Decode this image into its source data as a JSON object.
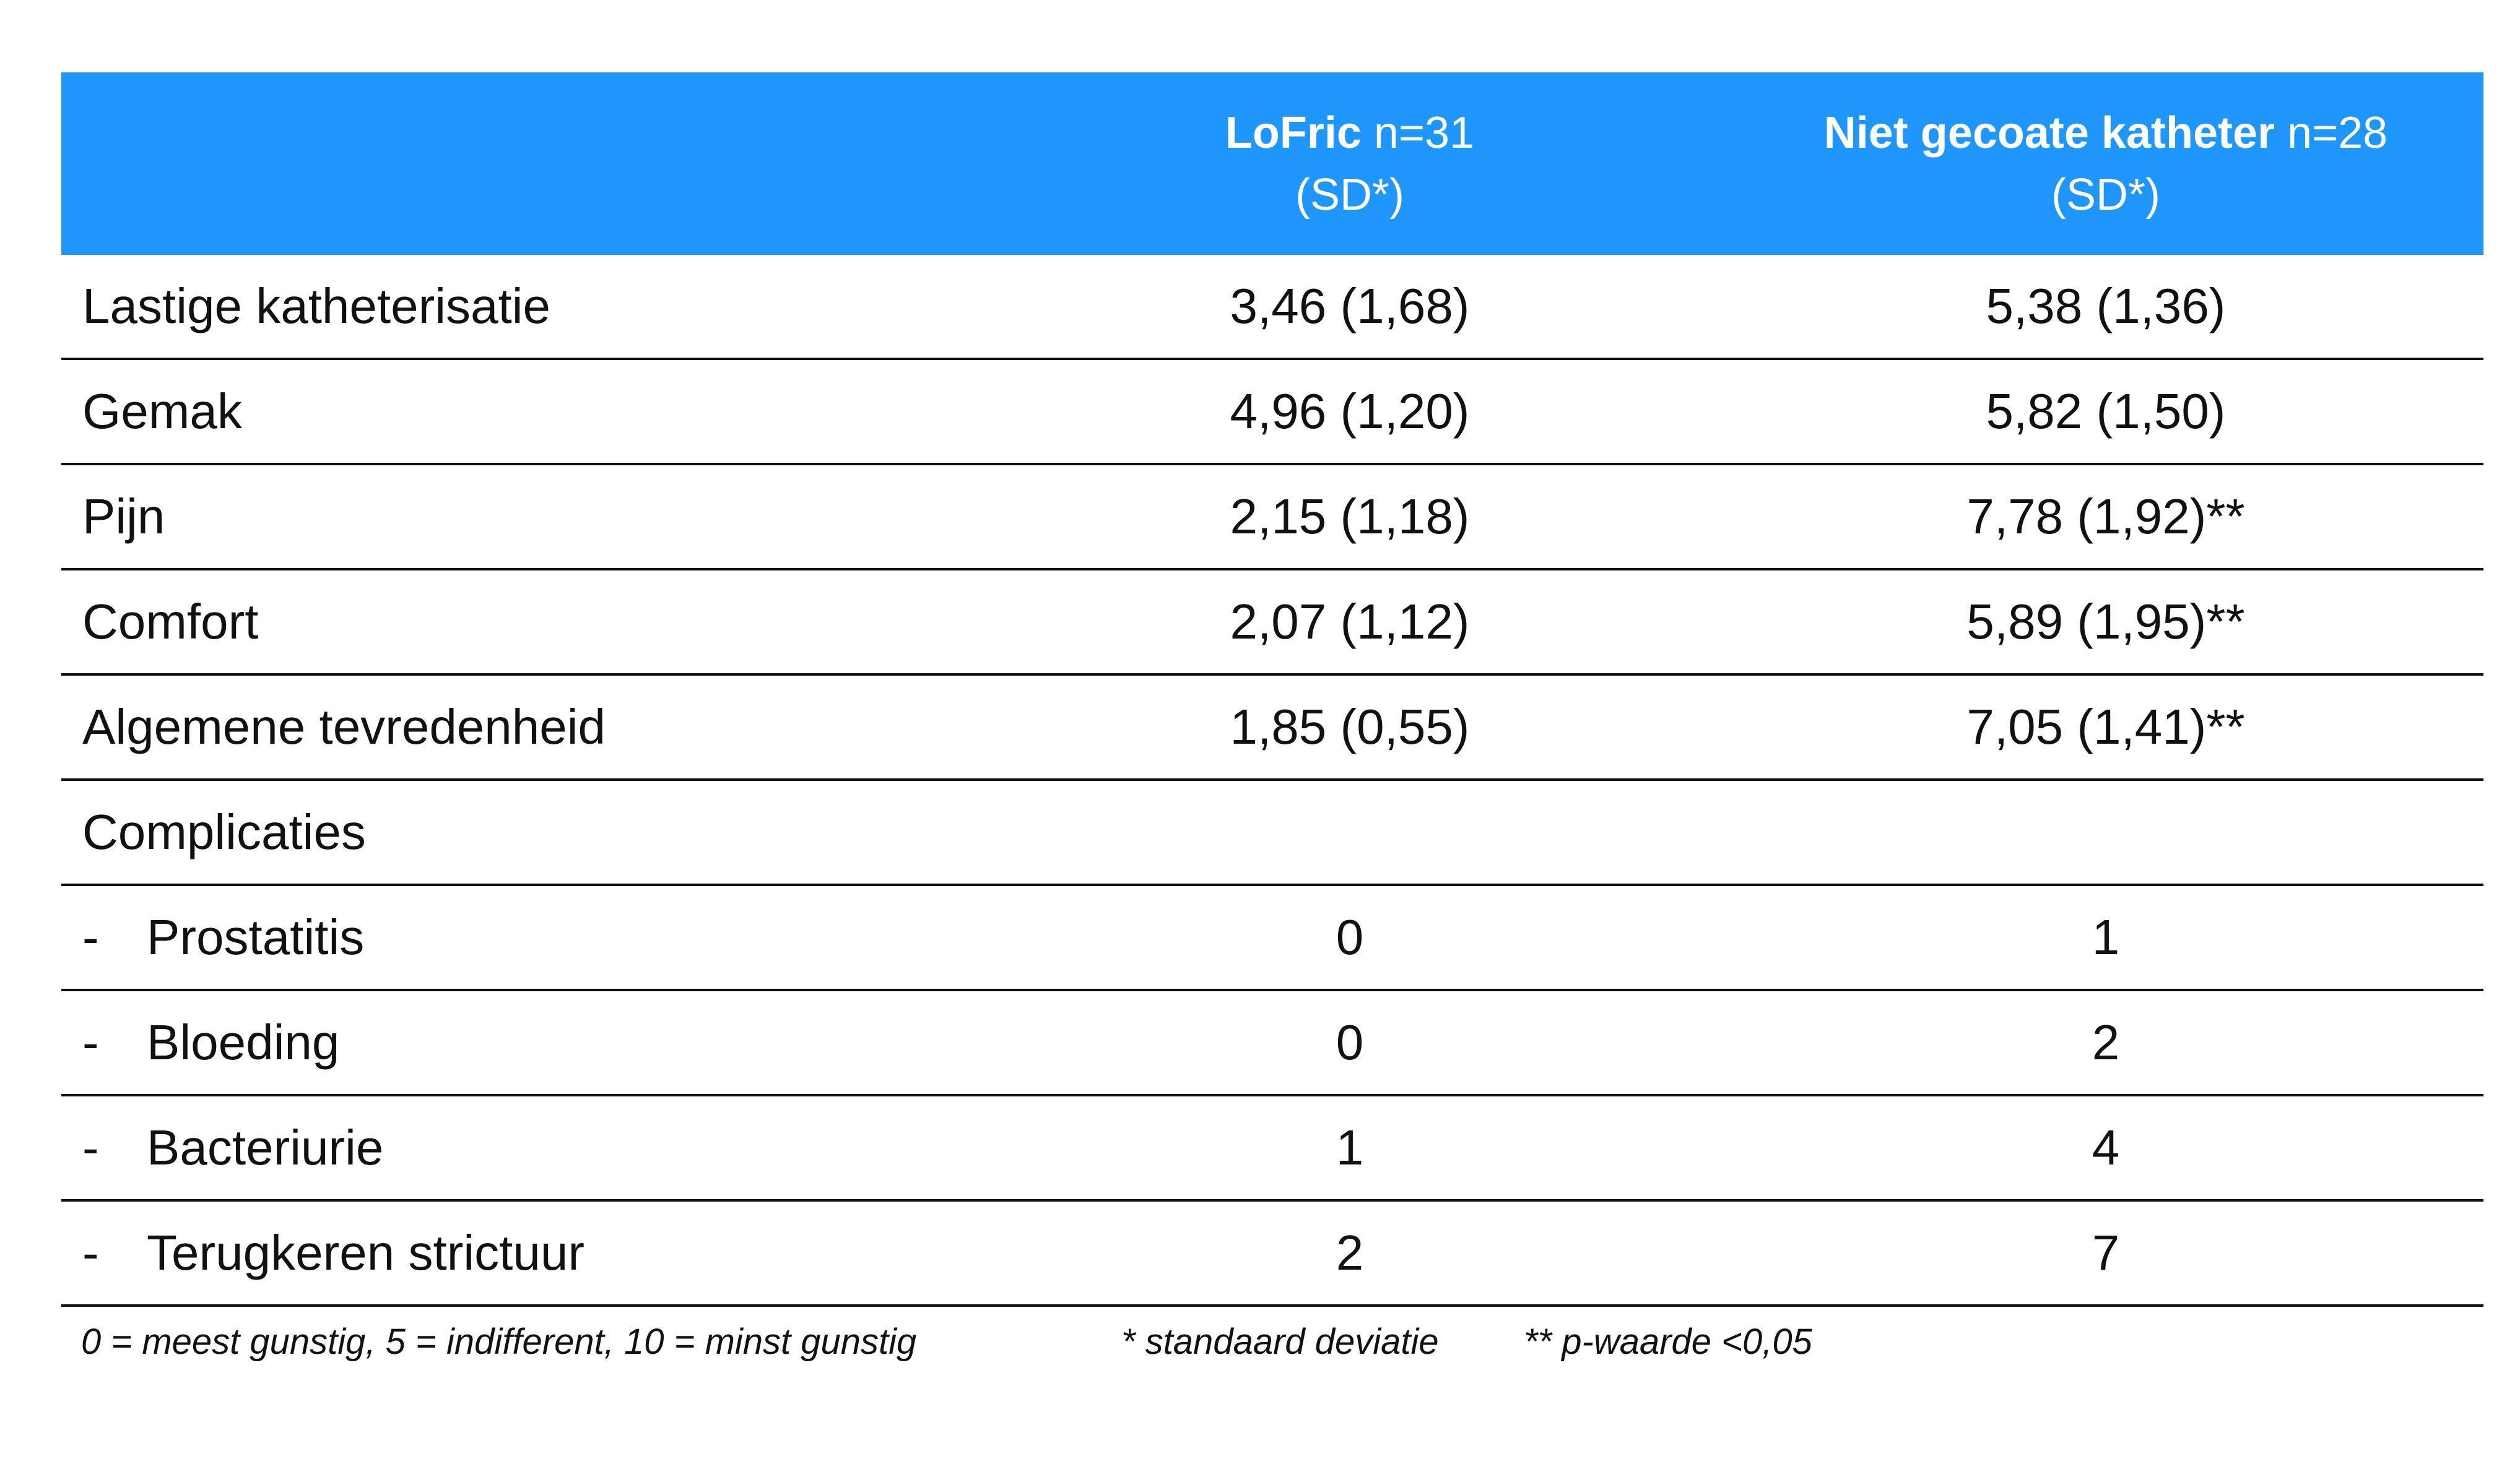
{
  "header": {
    "col1_name": "LoFric",
    "col1_n": " n=31",
    "col1_sub": "(SD*)",
    "col2_name": "Niet gecoate katheter",
    "col2_n": " n=28",
    "col2_sub": "(SD*)"
  },
  "rows": [
    {
      "label": "Lastige katheterisatie",
      "lofric": "3,46 (1,68)",
      "niet": "5,38 (1,36)"
    },
    {
      "label": "Gemak",
      "lofric": "4,96 (1,20)",
      "niet": "5,82 (1,50)"
    },
    {
      "label": "Pijn",
      "lofric": "2,15 (1,18)",
      "niet": "7,78 (1,92)**"
    },
    {
      "label": "Comfort",
      "lofric": "2,07 (1,12)",
      "niet": "5,89 (1,95)**"
    },
    {
      "label": "Algemene tevredenheid",
      "lofric": "1,85 (0,55)",
      "niet": "7,05 (1,41)**"
    },
    {
      "label": "Complicaties",
      "lofric": "",
      "niet": ""
    },
    {
      "dash": "-",
      "label": "Prostatitis",
      "lofric": "0",
      "niet": "1"
    },
    {
      "dash": "-",
      "label": "Bloeding",
      "lofric": "0",
      "niet": "2"
    },
    {
      "dash": "-",
      "label": "Bacteriurie",
      "lofric": "1",
      "niet": "4"
    },
    {
      "dash": "-",
      "label": "Terugkeren strictuur",
      "lofric": "2",
      "niet": "7"
    }
  ],
  "footnotes": {
    "scale": "0 = meest gunstig, 5 = indifferent, 10 = minst gunstig",
    "sd": "* standaard deviatie",
    "p": "** p-waarde <0,05"
  },
  "colors": {
    "header_bg": "#1e96fc",
    "header_text": "#ffffff",
    "text": "#111111"
  }
}
